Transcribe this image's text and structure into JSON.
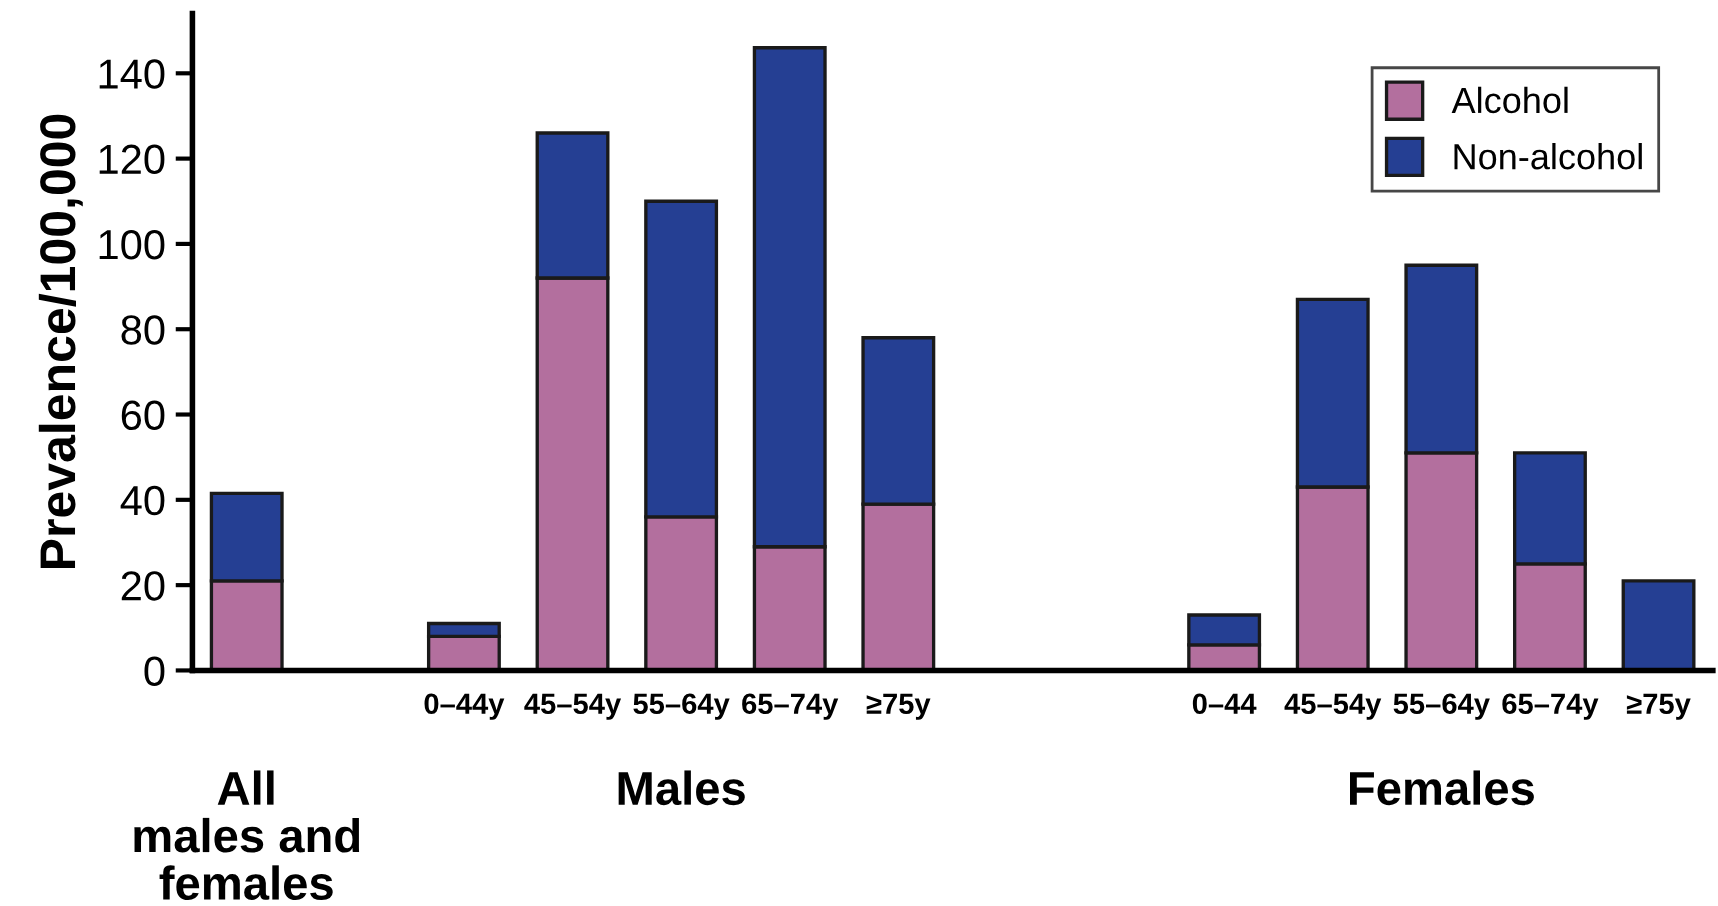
{
  "chart_data": {
    "type": "bar",
    "stacked": true,
    "ylabel": "Prevalence/100,000",
    "categories": [
      null,
      null,
      "0–44y",
      "45–54y",
      "55–64y",
      "65–74y",
      "≥75y",
      null,
      null,
      "0–44",
      "45–54y",
      "55–64y",
      "65–74y",
      "≥75y"
    ],
    "series": [
      {
        "name": "Alcohol",
        "color": "#b36f9e",
        "values": [
          21,
          null,
          8,
          92,
          36,
          29,
          39,
          null,
          null,
          6,
          43,
          51,
          25,
          0
        ]
      },
      {
        "name": "Non-alcohol",
        "color": "#253f93",
        "values": [
          20.5,
          null,
          3,
          34,
          74,
          117,
          39,
          null,
          null,
          7,
          44,
          44,
          26,
          21
        ]
      }
    ],
    "ylim": [
      0,
      154
    ],
    "yticks": [
      0,
      20,
      40,
      60,
      80,
      100,
      120,
      140
    ],
    "legend": "top right",
    "grid": false,
    "annotations": [
      "All\nmales and\nfemales",
      "Males",
      "Females"
    ]
  }
}
